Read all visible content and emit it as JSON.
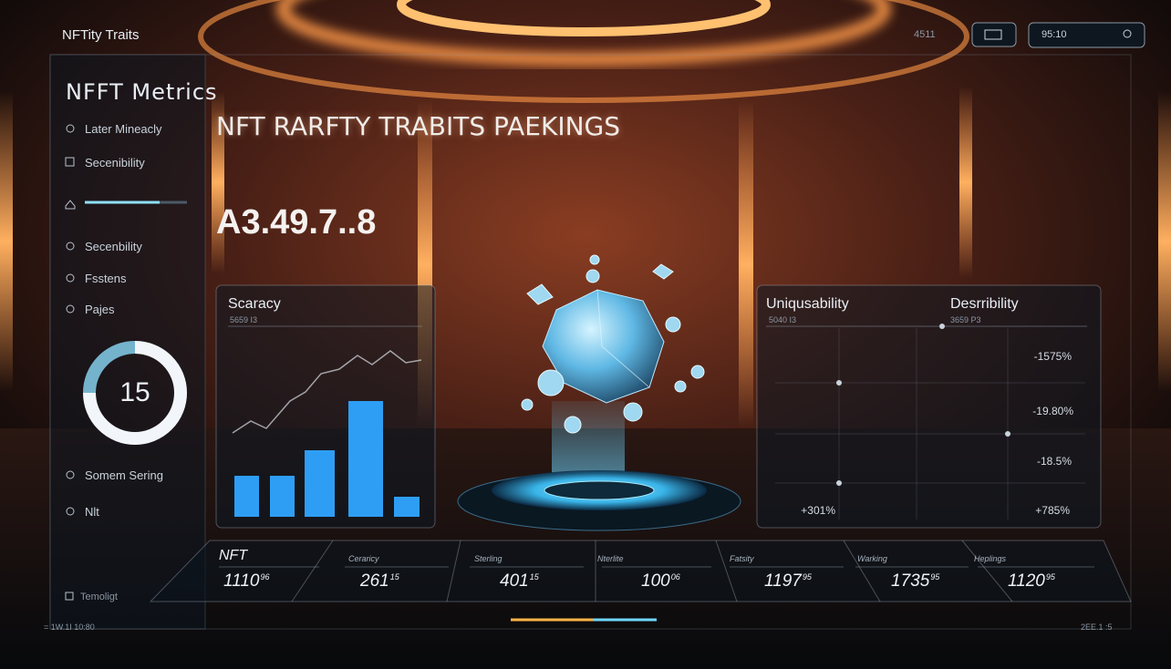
{
  "header": {
    "brand": "NFTity Traits",
    "status": "4511",
    "search": "95:10"
  },
  "sidebar": {
    "title": "NFFT Metrics",
    "items": [
      "Later Mineacly",
      "Secenibility",
      "Secenbility",
      "Fsstens",
      "Pajes"
    ],
    "ring_value": 15,
    "footer_items": [
      "Somem Sering",
      "Nlt"
    ],
    "bottom": "Temoligt"
  },
  "headline": "NFT RARFTY TRABITS PAEKINGS",
  "big_number": "A3.49.7..8",
  "left_panel": {
    "title": "Scaracy",
    "subtitle": "5659 I3"
  },
  "right_panel": {
    "titles": [
      "Uniqusability",
      "Desrribility"
    ],
    "subtitles": [
      "5040 I3",
      "3659 P3"
    ],
    "labels": [
      "-1575%",
      "-19.80%",
      "-18.5%",
      "+785%",
      "+301%"
    ]
  },
  "table": {
    "headers": [
      "NFT",
      "Ceraricy",
      "Sterling",
      "Nterlite",
      "Fatsity",
      "Warking",
      "Heplings"
    ],
    "values": [
      "1110",
      "261",
      "401",
      "100",
      "1197",
      "1735",
      "1120"
    ],
    "sups": [
      "96",
      "15",
      "15",
      "06",
      "95",
      "95",
      "95"
    ]
  },
  "footer": {
    "left": "= 1W.1I 10:80",
    "right": "2EE.1 :5"
  }
}
